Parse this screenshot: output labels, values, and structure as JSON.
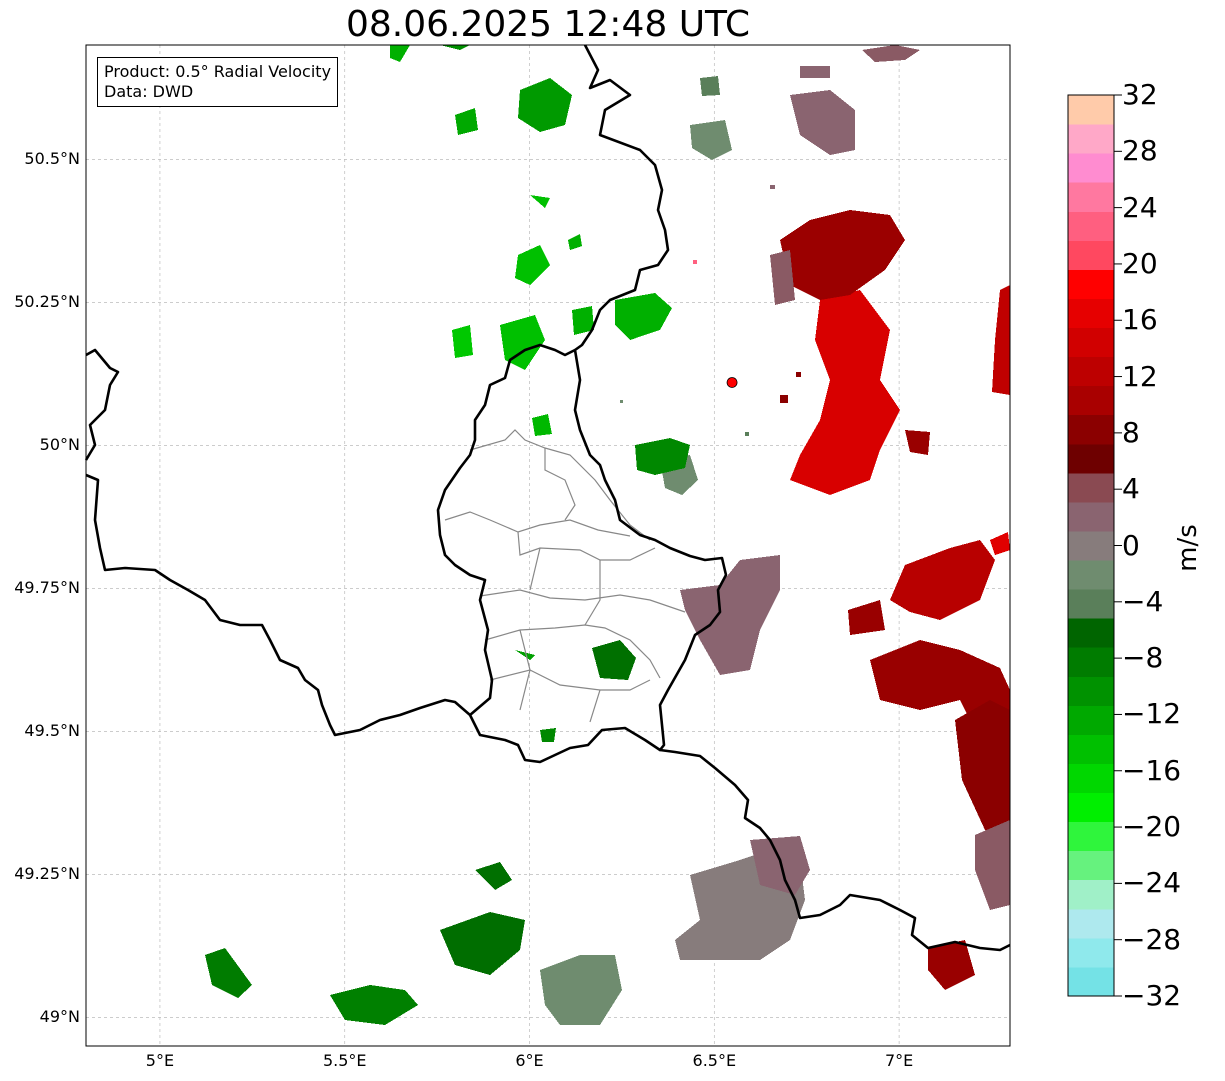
{
  "title": "08.06.2025 12:48 UTC",
  "info": {
    "product_line": "Product: 0.5° Radial Velocity",
    "data_line": "Data: DWD"
  },
  "map": {
    "lon_range": [
      4.8,
      7.3
    ],
    "lat_range": [
      48.95,
      50.7
    ],
    "grid": true,
    "radar_site": {
      "lon": 6.548,
      "lat": 50.11,
      "color": "#ff0000"
    },
    "x_ticks": [
      "5°E",
      "5.5°E",
      "6°E",
      "6.5°E",
      "7°E"
    ],
    "y_ticks": [
      "50.5°N",
      "50.25°N",
      "50°N",
      "49.75°N",
      "49.5°N",
      "49.25°N",
      "49°N"
    ]
  },
  "colorbar": {
    "label": "m/s",
    "min": -32,
    "max": 32,
    "tick_labels": [
      "32",
      "28",
      "24",
      "20",
      "16",
      "12",
      "8",
      "4",
      "0",
      "−4",
      "−8",
      "−12",
      "−16",
      "−20",
      "−24",
      "−28",
      "−32"
    ],
    "colors": [
      "#74e2e6",
      "#8fe9ec",
      "#aee9ee",
      "#a0f0c8",
      "#66f27e",
      "#2ff53c",
      "#00ef00",
      "#00d700",
      "#00c000",
      "#00a900",
      "#009200",
      "#007c00",
      "#006500",
      "#5a7f5a",
      "#6f8c6f",
      "#877c7c",
      "#8a6470",
      "#8a4a52",
      "#6e0000",
      "#8b0000",
      "#a90000",
      "#bd0000",
      "#d10000",
      "#e60000",
      "#ff0000",
      "#ff4860",
      "#ff5f80",
      "#ff78a0",
      "#ff8cd0",
      "#ffa8c8",
      "#ffcbaa"
    ]
  }
}
